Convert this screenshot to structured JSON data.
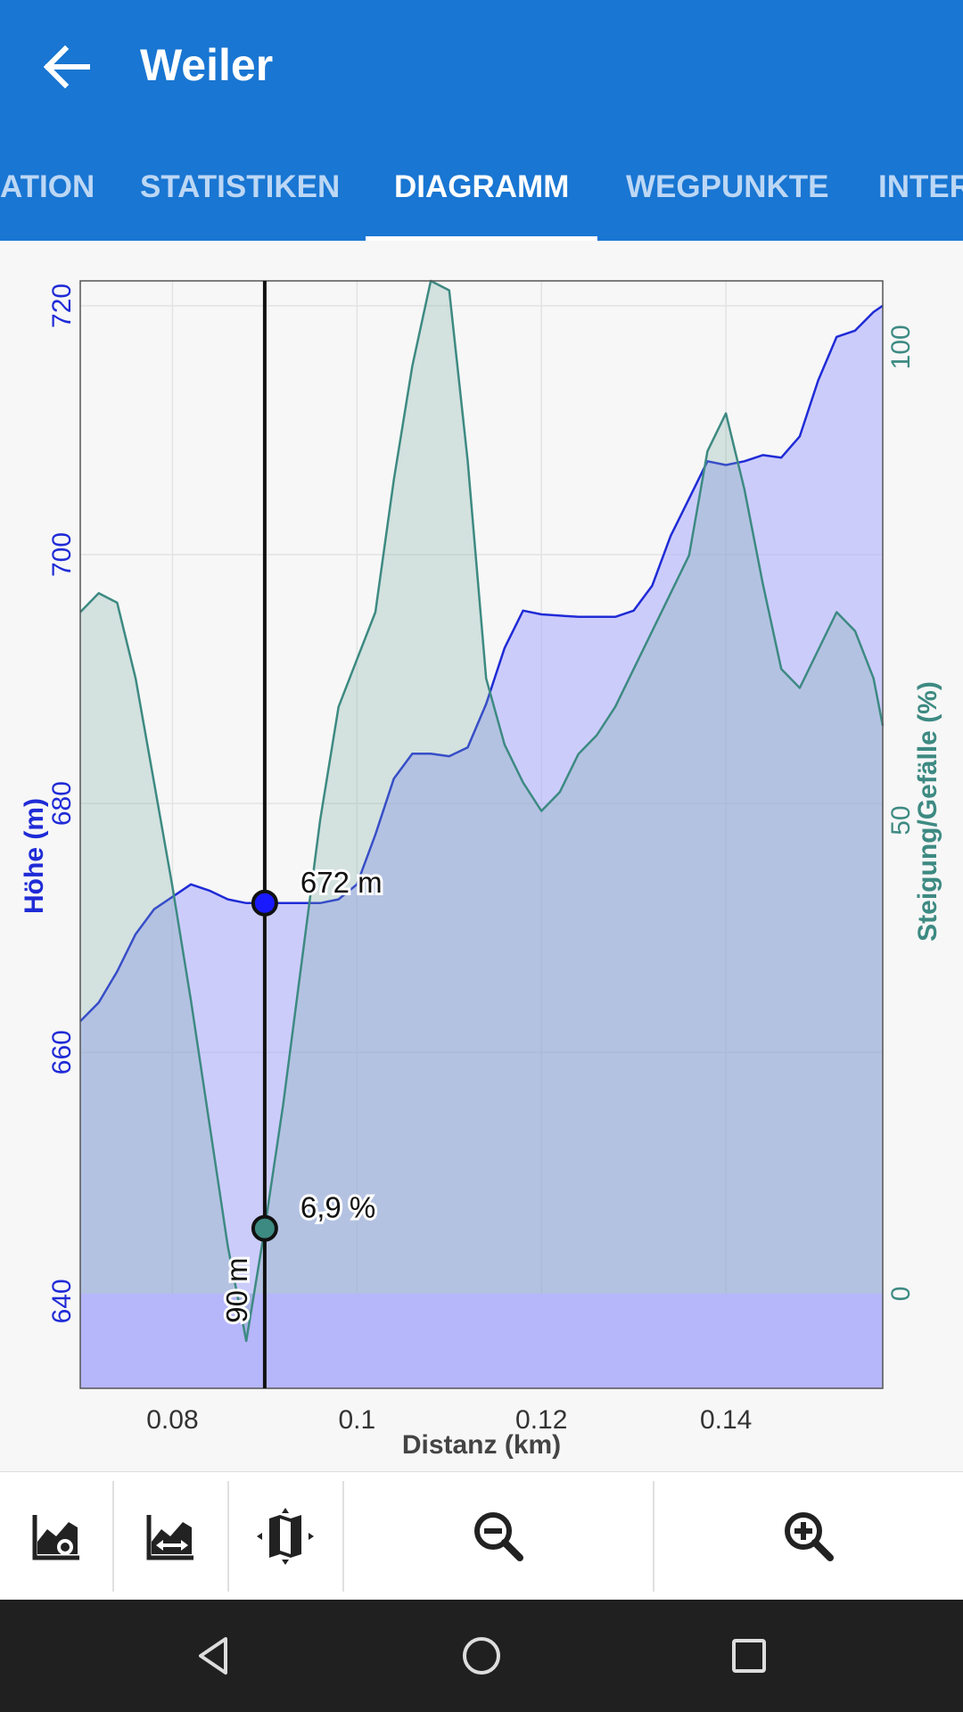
{
  "app_bar": {
    "title": "Weiler",
    "back_icon": "arrow-left-icon"
  },
  "tabs": [
    {
      "label": "ATION",
      "active": false
    },
    {
      "label": "STATISTIKEN",
      "active": false
    },
    {
      "label": "DIAGRAMM",
      "active": true
    },
    {
      "label": "WEGPUNKTE",
      "active": false
    },
    {
      "label": "INTER",
      "active": false
    }
  ],
  "colors": {
    "primary": "#1976d2",
    "elevation": "#1f2bd6",
    "slope": "#3d8a82"
  },
  "chart_data": {
    "type": "area",
    "xlabel": "Distanz (km)",
    "ylabel": "Höhe (m)",
    "y2label": "Steigung/Gefälle (%)",
    "xlim": [
      0.07,
      0.157
    ],
    "ylim": [
      633,
      722
    ],
    "y2lim": [
      -10,
      107
    ],
    "x_ticks": [
      {
        "value": 0.08,
        "label": "0.08"
      },
      {
        "value": 0.1,
        "label": "0.1"
      },
      {
        "value": 0.12,
        "label": "0.12"
      },
      {
        "value": 0.14,
        "label": "0.14"
      }
    ],
    "y_ticks": [
      {
        "value": 640,
        "label": "640"
      },
      {
        "value": 660,
        "label": "660"
      },
      {
        "value": 680,
        "label": "680"
      },
      {
        "value": 700,
        "label": "700"
      },
      {
        "value": 720,
        "label": "720"
      }
    ],
    "y2_ticks": [
      {
        "value": 0,
        "label": "0"
      },
      {
        "value": 50,
        "label": "50"
      },
      {
        "value": 100,
        "label": "100"
      }
    ],
    "series": [
      {
        "name": "Höhe (m)",
        "axis": "left",
        "x": [
          0.07,
          0.072,
          0.074,
          0.076,
          0.078,
          0.08,
          0.082,
          0.084,
          0.086,
          0.088,
          0.09,
          0.092,
          0.094,
          0.096,
          0.098,
          0.1,
          0.102,
          0.104,
          0.106,
          0.108,
          0.11,
          0.112,
          0.114,
          0.116,
          0.118,
          0.12,
          0.122,
          0.124,
          0.126,
          0.128,
          0.13,
          0.132,
          0.134,
          0.136,
          0.138,
          0.14,
          0.142,
          0.144,
          0.146,
          0.148,
          0.15,
          0.152,
          0.154,
          0.156,
          0.157
        ],
        "values": [
          662.5,
          664,
          666.5,
          669.5,
          671.5,
          672.5,
          673.5,
          673,
          672.3,
          672,
          672,
          672,
          672,
          672,
          672.3,
          673.5,
          677.5,
          682,
          684,
          684,
          683.8,
          684.5,
          688,
          692.5,
          695.5,
          695.2,
          695.1,
          695,
          695,
          695,
          695.5,
          697.5,
          701.5,
          704.5,
          707.5,
          707.2,
          707.5,
          708,
          707.8,
          709.5,
          714,
          717.5,
          718,
          719.5,
          720
        ]
      },
      {
        "name": "Steigung/Gefälle (%)",
        "axis": "right",
        "x": [
          0.07,
          0.072,
          0.074,
          0.076,
          0.078,
          0.08,
          0.082,
          0.084,
          0.086,
          0.088,
          0.09,
          0.092,
          0.094,
          0.096,
          0.098,
          0.1,
          0.102,
          0.104,
          0.106,
          0.108,
          0.11,
          0.112,
          0.114,
          0.116,
          0.118,
          0.12,
          0.122,
          0.124,
          0.126,
          0.128,
          0.13,
          0.132,
          0.134,
          0.136,
          0.138,
          0.14,
          0.142,
          0.144,
          0.146,
          0.148,
          0.15,
          0.152,
          0.154,
          0.156,
          0.157
        ],
        "values": [
          72,
          74,
          73,
          65,
          54,
          43,
          31,
          18,
          5,
          -5,
          6.9,
          20,
          35,
          50,
          62,
          67,
          72,
          86,
          98,
          107,
          106,
          88,
          65,
          58,
          54,
          51,
          53,
          57,
          59,
          62,
          66,
          70,
          74,
          78,
          89,
          93,
          85,
          75,
          66,
          64,
          68,
          72,
          70,
          65,
          60
        ]
      }
    ],
    "cursor": {
      "x": 0.09,
      "elevation_label": "672 m",
      "slope_label": "6,9 %",
      "distance_label": "90 m",
      "elevation": 672,
      "slope": 6.9
    },
    "grid": true
  },
  "toolbar": {
    "items": [
      {
        "name": "elevation-settings",
        "icon": "area-chart-wrench-icon"
      },
      {
        "name": "chart-range",
        "icon": "area-chart-arrows-icon"
      },
      {
        "name": "map",
        "icon": "map-icon"
      },
      {
        "name": "zoom-out",
        "icon": "zoom-out-icon"
      },
      {
        "name": "zoom-in",
        "icon": "zoom-in-icon"
      }
    ]
  },
  "navbar": {
    "items": [
      {
        "name": "back",
        "icon": "triangle-back-icon"
      },
      {
        "name": "home",
        "icon": "circle-home-icon"
      },
      {
        "name": "recents",
        "icon": "square-recents-icon"
      }
    ]
  }
}
